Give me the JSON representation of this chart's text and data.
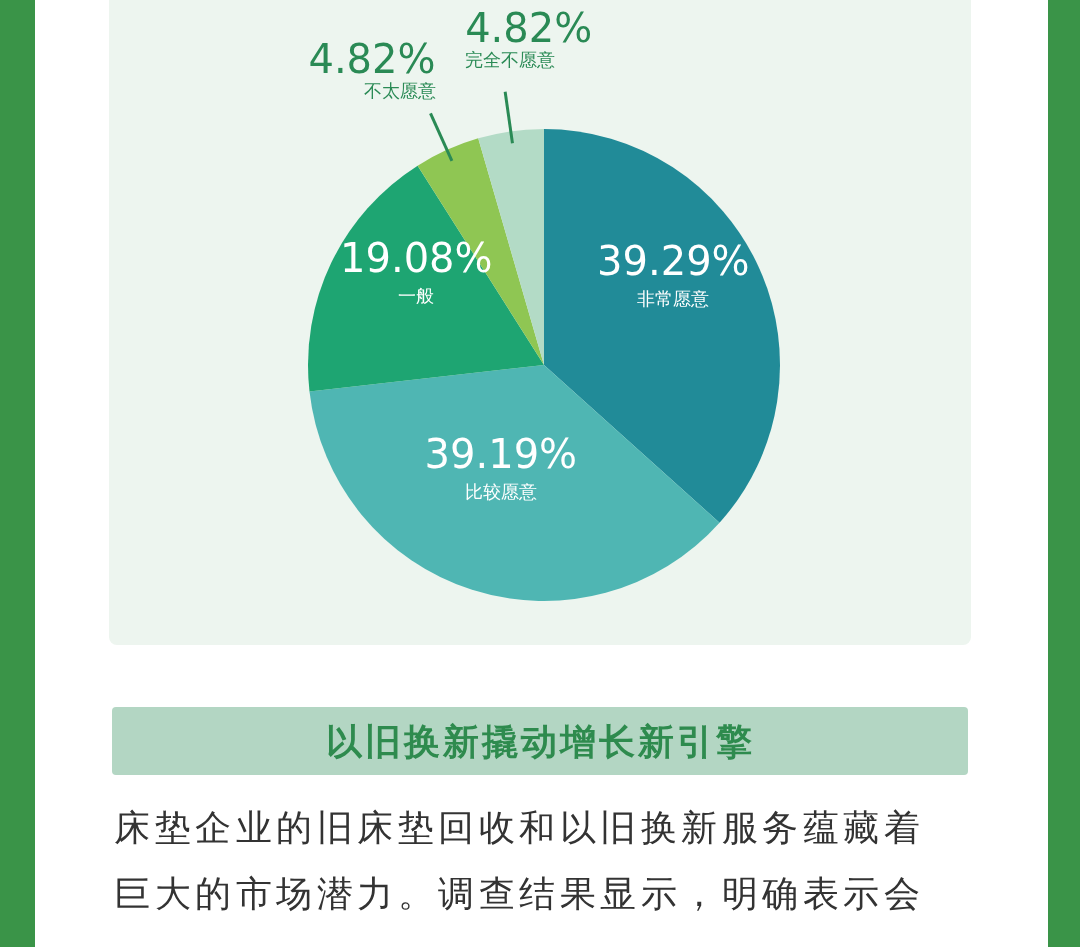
{
  "chart_data": {
    "type": "pie",
    "categories": [
      "非常愿意",
      "比较愿意",
      "一般",
      "不太愿意",
      "完全不愿意"
    ],
    "values": [
      39.29,
      39.19,
      19.08,
      4.82,
      4.82
    ],
    "colors": [
      "#218b98",
      "#4fb6b3",
      "#1ea572",
      "#8fc653",
      "#b3dbc6"
    ],
    "value_labels": [
      "39.29%",
      "39.19%",
      "19.08%",
      "4.82%",
      "4.82%"
    ],
    "annotations": [
      "以旧换新撬动增长新引擎",
      "床垫企业的旧床垫回收和以旧换新服务蕴藏着",
      "巨大的市场潜力。调查结果显示，明确表示会"
    ]
  }
}
